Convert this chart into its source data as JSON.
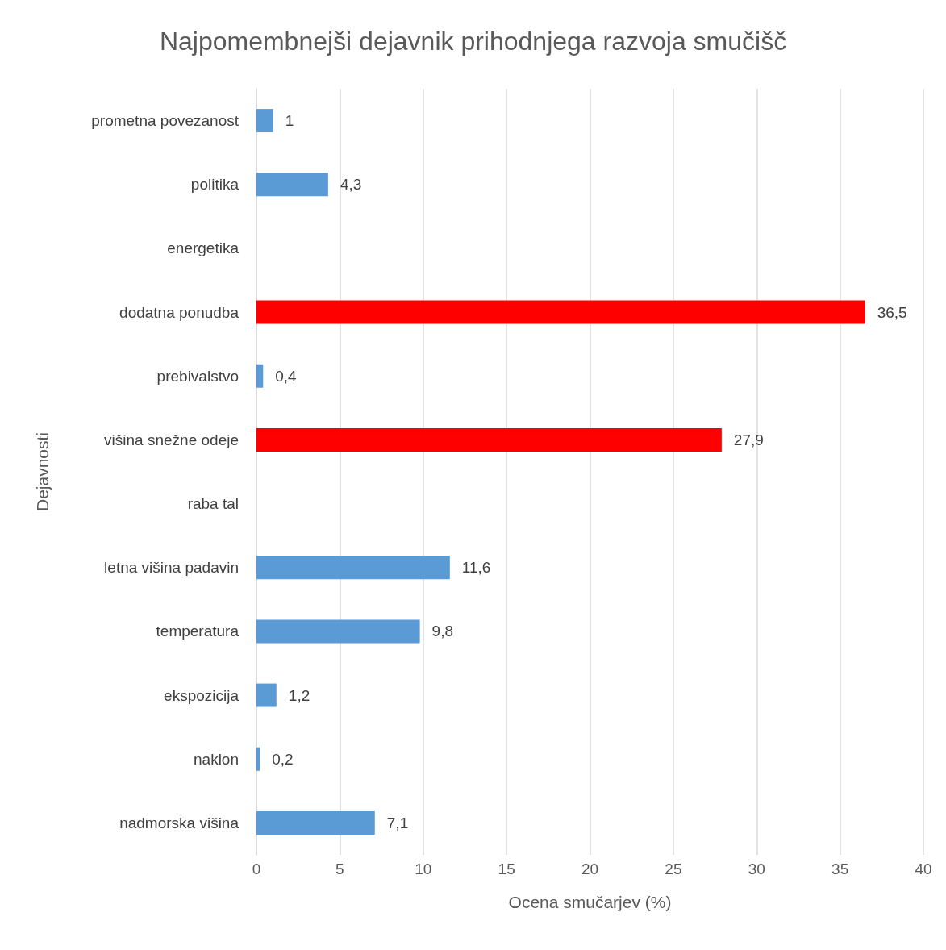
{
  "chart_data": {
    "type": "bar",
    "orientation": "horizontal",
    "title": "Najpomembnejši dejavnik prihodnjega razvoja smučišč",
    "xlabel": "Ocena smučarjev (%)",
    "ylabel": "Dejavnosti",
    "categories": [
      "prometna povezanost",
      "politika",
      "energetika",
      "dodatna ponudba",
      "prebivalstvo",
      "višina snežne odeje",
      "raba tal",
      "letna višina padavin",
      "temperatura",
      "ekspozicija",
      "naklon",
      "nadmorska višina"
    ],
    "values": [
      1,
      4.3,
      null,
      36.5,
      0.4,
      27.9,
      null,
      11.6,
      9.8,
      1.2,
      0.2,
      7.1
    ],
    "value_labels": [
      "1",
      "4,3",
      null,
      "36,5",
      "0,4",
      "27,9",
      null,
      "11,6",
      "9,8",
      "1,2",
      "0,2",
      "7,1"
    ],
    "colors": [
      "#5b9bd5",
      "#5b9bd5",
      "#5b9bd5",
      "#ff0000",
      "#5b9bd5",
      "#ff0000",
      "#5b9bd5",
      "#5b9bd5",
      "#5b9bd5",
      "#5b9bd5",
      "#5b9bd5",
      "#5b9bd5"
    ],
    "xlim": [
      0,
      40
    ],
    "xticks": [
      0,
      5,
      10,
      15,
      20,
      25,
      30,
      35,
      40
    ],
    "grid": "x"
  }
}
